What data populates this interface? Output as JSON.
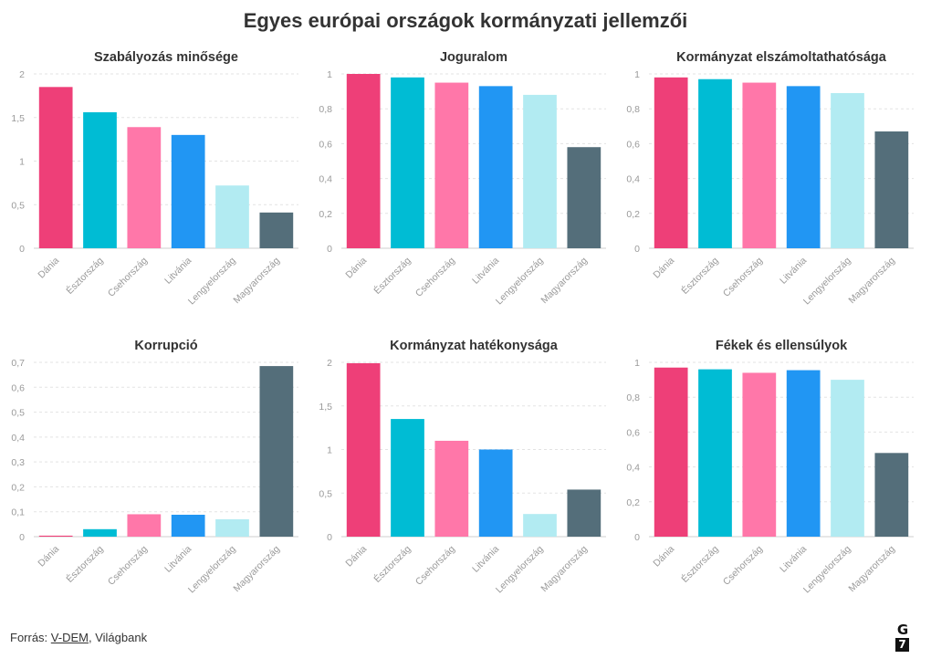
{
  "title": "Egyes európai országok kormányzati jellemzői",
  "footer": {
    "prefix": "Forrás: ",
    "source_link": "V-DEM",
    "separator": ", ",
    "source_rest": "Világbank"
  },
  "logo": {
    "top": "G",
    "bottom": "7"
  },
  "colors": [
    "#ee3f78",
    "#00bcd4",
    "#ff77a9",
    "#2196f3",
    "#b2ebf2",
    "#546e7a"
  ],
  "chart_data": [
    {
      "type": "bar",
      "title": "Szabályozás minősége",
      "categories": [
        "Dánia",
        "Észtország",
        "Csehország",
        "Litvánia",
        "Lengyelország",
        "Magyarország"
      ],
      "values": [
        1.85,
        1.56,
        1.39,
        1.3,
        0.72,
        0.41
      ],
      "ylim": [
        0,
        2
      ],
      "yticks": [
        0,
        0.5,
        1,
        1.5,
        2
      ],
      "ytick_labels": [
        "0",
        "0,5",
        "1",
        "1,5",
        "2"
      ]
    },
    {
      "type": "bar",
      "title": "Joguralom",
      "categories": [
        "Dánia",
        "Észtország",
        "Csehország",
        "Litvánia",
        "Lengyelország",
        "Magyarország"
      ],
      "values": [
        1.0,
        0.98,
        0.95,
        0.93,
        0.88,
        0.58
      ],
      "ylim": [
        0,
        1
      ],
      "yticks": [
        0,
        0.2,
        0.4,
        0.6,
        0.8,
        1
      ],
      "ytick_labels": [
        "0",
        "0,2",
        "0,4",
        "0,6",
        "0,8",
        "1"
      ]
    },
    {
      "type": "bar",
      "title": "Kormányzat elszámoltathatósága",
      "categories": [
        "Dánia",
        "Észtország",
        "Csehország",
        "Litvánia",
        "Lengyelország",
        "Magyarország"
      ],
      "values": [
        0.98,
        0.97,
        0.95,
        0.93,
        0.89,
        0.67
      ],
      "ylim": [
        0,
        1
      ],
      "yticks": [
        0,
        0.2,
        0.4,
        0.6,
        0.8,
        1
      ],
      "ytick_labels": [
        "0",
        "0,2",
        "0,4",
        "0,6",
        "0,8",
        "1"
      ]
    },
    {
      "type": "bar",
      "title": "Korrupció",
      "categories": [
        "Dánia",
        "Észtország",
        "Csehország",
        "Litvánia",
        "Lengyelország",
        "Magyarország"
      ],
      "values": [
        0.004,
        0.03,
        0.09,
        0.088,
        0.07,
        0.685
      ],
      "ylim": [
        0,
        0.7
      ],
      "yticks": [
        0,
        0.1,
        0.2,
        0.3,
        0.4,
        0.5,
        0.6,
        0.7
      ],
      "ytick_labels": [
        "0",
        "0,1",
        "0,2",
        "0,3",
        "0,4",
        "0,5",
        "0,6",
        "0,7"
      ]
    },
    {
      "type": "bar",
      "title": "Kormányzat hatékonysága",
      "categories": [
        "Dánia",
        "Észtország",
        "Csehország",
        "Litvánia",
        "Lengyelország",
        "Magyarország"
      ],
      "values": [
        1.99,
        1.35,
        1.1,
        1.0,
        0.26,
        0.54
      ],
      "ylim": [
        0,
        2
      ],
      "yticks": [
        0,
        0.5,
        1,
        1.5,
        2
      ],
      "ytick_labels": [
        "0",
        "0,5",
        "1",
        "1,5",
        "2"
      ]
    },
    {
      "type": "bar",
      "title": "Fékek és ellensúlyok",
      "categories": [
        "Dánia",
        "Észtország",
        "Csehország",
        "Litvánia",
        "Lengyelország",
        "Magyarország"
      ],
      "values": [
        0.97,
        0.96,
        0.94,
        0.955,
        0.9,
        0.48
      ],
      "ylim": [
        0,
        1
      ],
      "yticks": [
        0,
        0.2,
        0.4,
        0.6,
        0.8,
        1
      ],
      "ytick_labels": [
        "0",
        "0,2",
        "0,4",
        "0,6",
        "0,8",
        "1"
      ]
    }
  ]
}
